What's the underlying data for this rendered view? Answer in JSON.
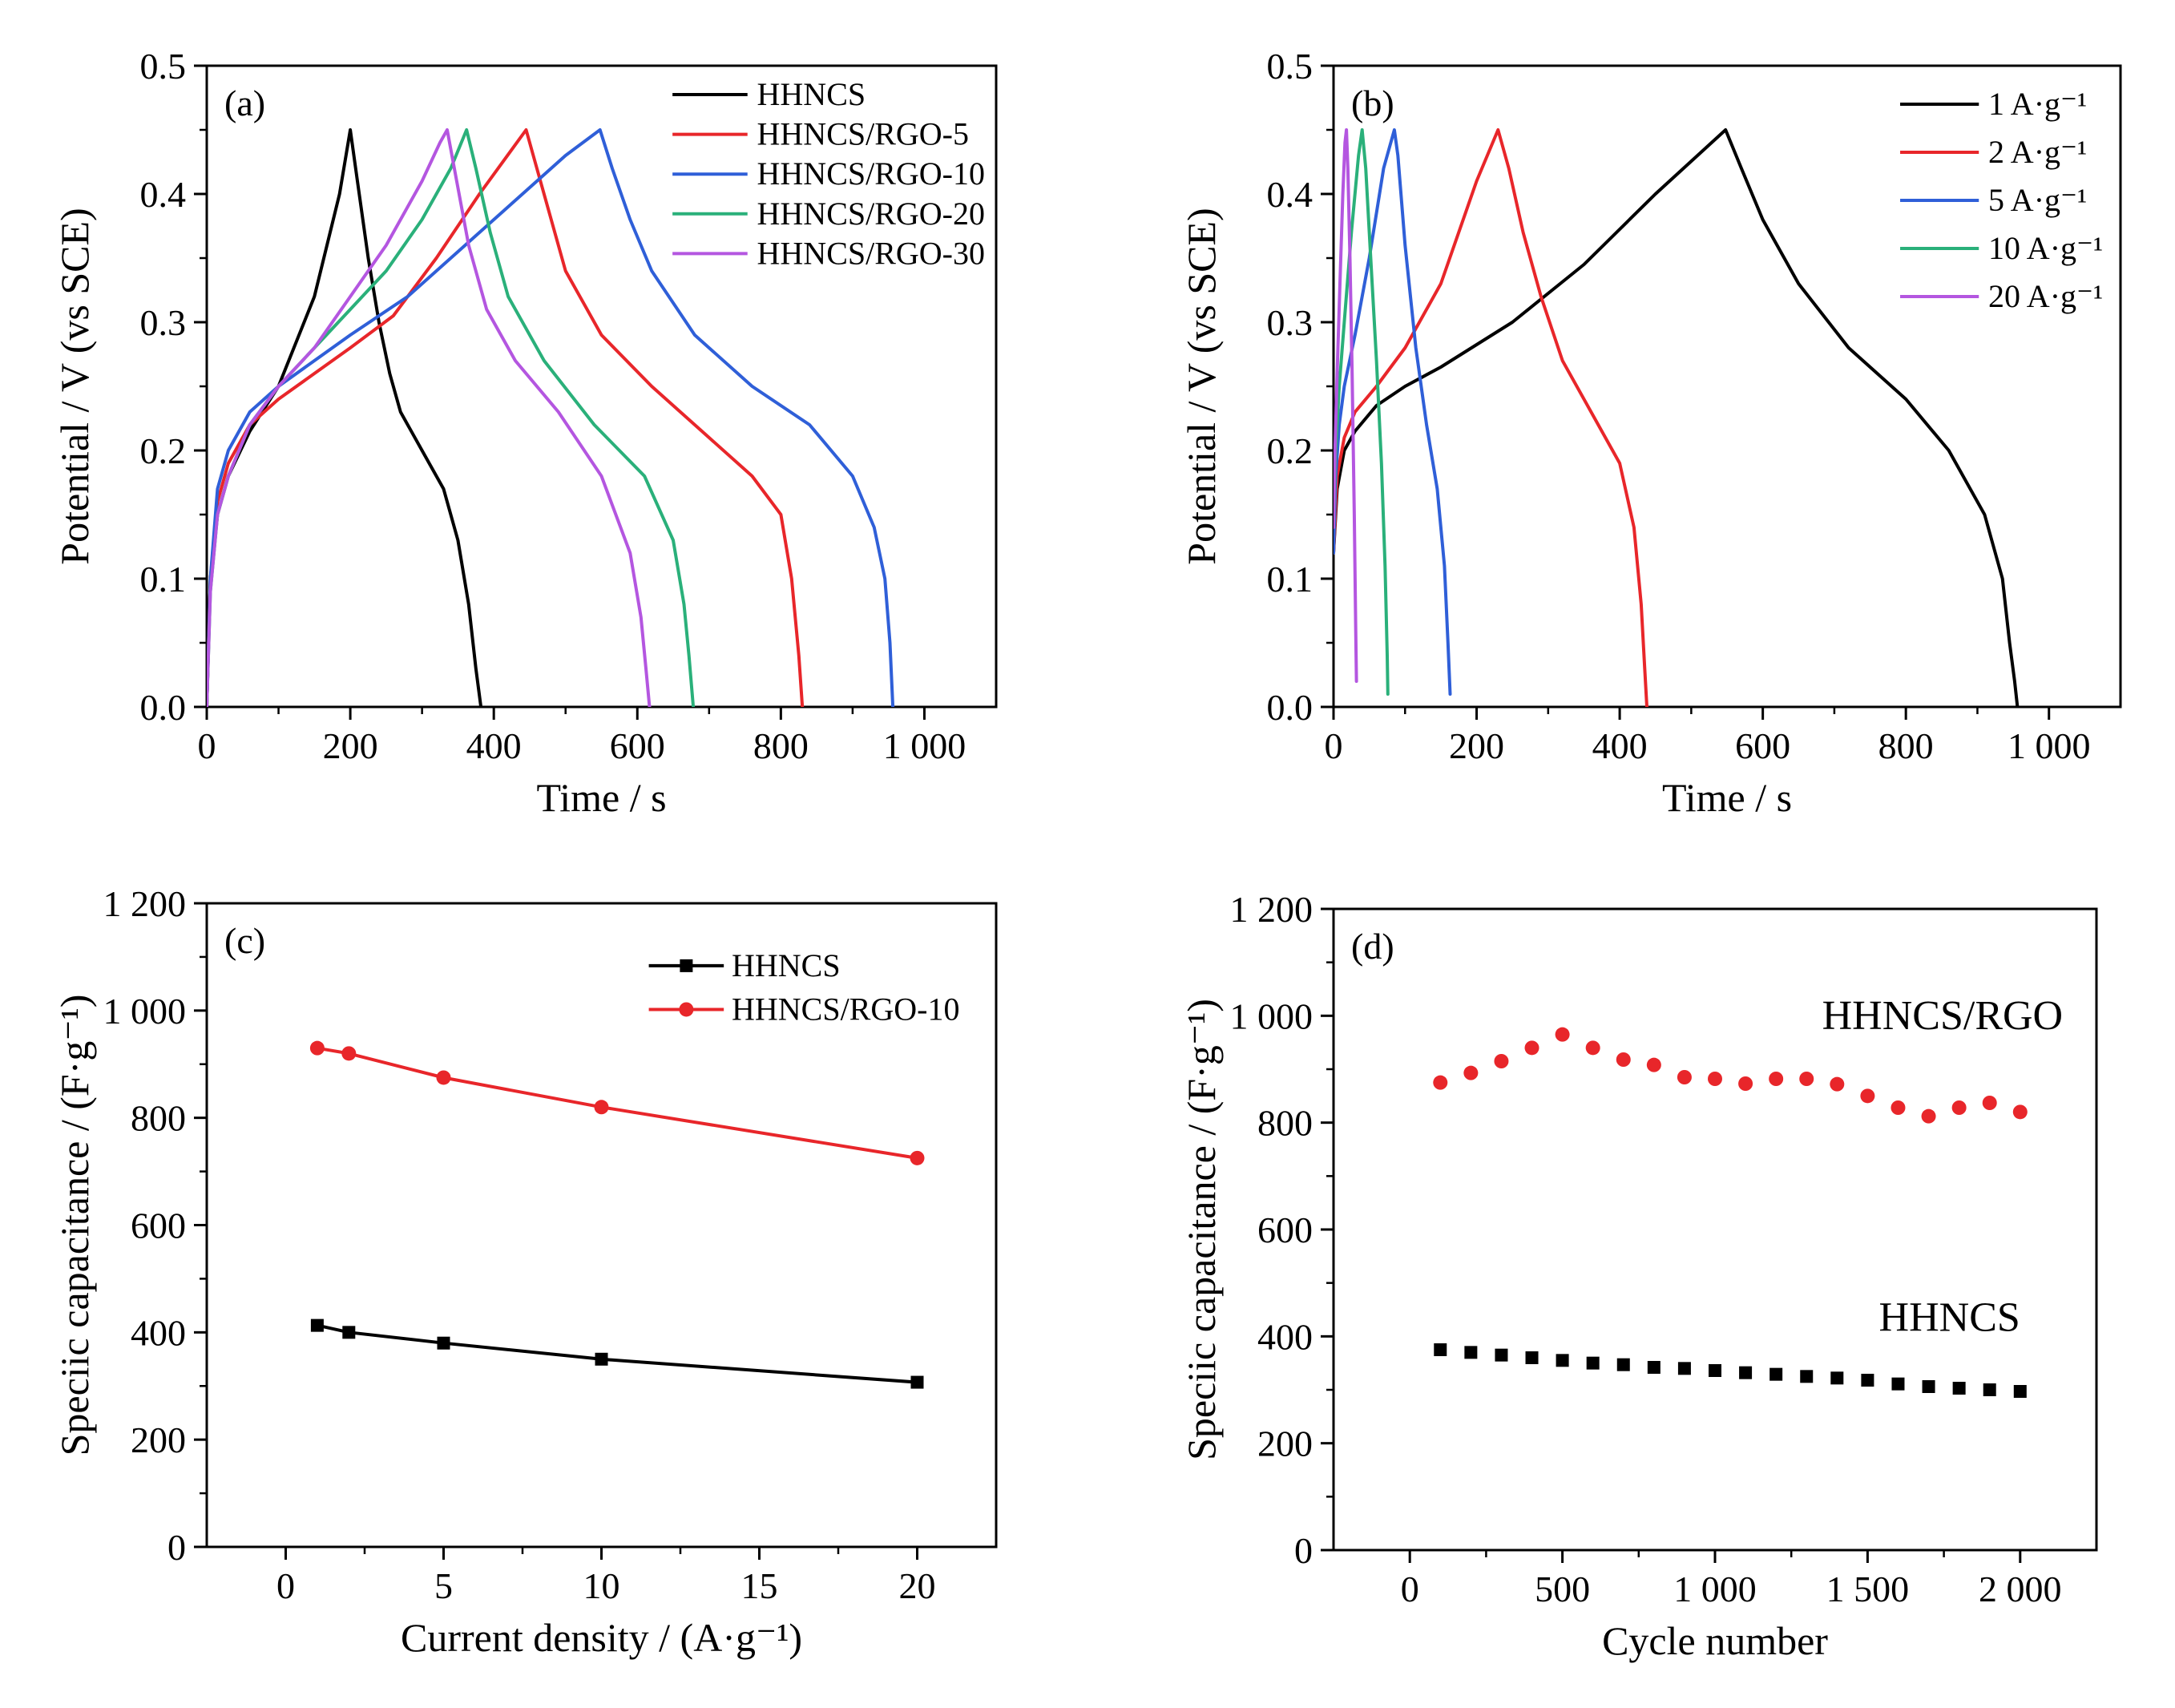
{
  "chart_data": [
    {
      "id": "a",
      "type": "line",
      "panel_label": "(a)",
      "xlabel": "Time / s",
      "ylabel": "Potential / V (vs SCE)",
      "xlim": [
        0,
        1100
      ],
      "ylim": [
        0,
        0.5
      ],
      "x_ticks": [
        0,
        200,
        400,
        600,
        800,
        1000
      ],
      "x_tick_labels": [
        "0",
        "200",
        "400",
        "600",
        "800",
        "1 000"
      ],
      "y_ticks": [
        0,
        0.1,
        0.2,
        0.3,
        0.4,
        0.5
      ],
      "y_tick_labels": [
        "0.0",
        "0.1",
        "0.2",
        "0.3",
        "0.4",
        "0.5"
      ],
      "legend": "top-right",
      "series": [
        {
          "name": "HHNCS",
          "color": "#000000",
          "x": [
            0,
            5,
            15,
            30,
            60,
            100,
            150,
            185,
            200,
            210,
            225,
            240,
            255,
            270,
            300,
            330,
            350,
            365,
            375,
            382
          ],
          "y": [
            0,
            0.1,
            0.15,
            0.18,
            0.215,
            0.25,
            0.32,
            0.4,
            0.45,
            0.41,
            0.35,
            0.3,
            0.26,
            0.23,
            0.2,
            0.17,
            0.13,
            0.08,
            0.03,
            0
          ]
        },
        {
          "name": "HHNCS/RGO-5",
          "color": "#e8262a",
          "x": [
            0,
            5,
            15,
            30,
            60,
            100,
            150,
            200,
            260,
            320,
            380,
            445,
            460,
            480,
            500,
            550,
            620,
            700,
            760,
            800,
            815,
            825,
            830
          ],
          "y": [
            0,
            0.1,
            0.16,
            0.19,
            0.22,
            0.24,
            0.26,
            0.28,
            0.305,
            0.35,
            0.4,
            0.45,
            0.42,
            0.38,
            0.34,
            0.29,
            0.25,
            0.21,
            0.18,
            0.15,
            0.1,
            0.04,
            0
          ]
        },
        {
          "name": "HHNCS/RGO-10",
          "color": "#2f5fd8",
          "x": [
            0,
            5,
            15,
            30,
            60,
            100,
            150,
            200,
            280,
            360,
            440,
            500,
            548,
            565,
            590,
            620,
            680,
            760,
            840,
            900,
            930,
            945,
            952,
            956
          ],
          "y": [
            0,
            0.1,
            0.17,
            0.2,
            0.23,
            0.25,
            0.27,
            0.29,
            0.32,
            0.36,
            0.4,
            0.43,
            0.45,
            0.42,
            0.38,
            0.34,
            0.29,
            0.25,
            0.22,
            0.18,
            0.14,
            0.1,
            0.05,
            0
          ]
        },
        {
          "name": "HHNCS/RGO-20",
          "color": "#2ab07a",
          "x": [
            0,
            5,
            15,
            30,
            60,
            100,
            150,
            200,
            250,
            300,
            340,
            362,
            375,
            395,
            420,
            470,
            540,
            610,
            650,
            665,
            672,
            678
          ],
          "y": [
            0,
            0.09,
            0.15,
            0.18,
            0.22,
            0.25,
            0.28,
            0.31,
            0.34,
            0.38,
            0.42,
            0.45,
            0.42,
            0.37,
            0.32,
            0.27,
            0.22,
            0.18,
            0.13,
            0.08,
            0.04,
            0
          ]
        },
        {
          "name": "HHNCS/RGO-30",
          "color": "#b456e0",
          "x": [
            0,
            5,
            15,
            30,
            60,
            100,
            150,
            200,
            250,
            300,
            325,
            335,
            345,
            365,
            390,
            430,
            490,
            550,
            590,
            605,
            612,
            617
          ],
          "y": [
            0,
            0.09,
            0.15,
            0.18,
            0.22,
            0.25,
            0.28,
            0.32,
            0.36,
            0.41,
            0.44,
            0.45,
            0.42,
            0.36,
            0.31,
            0.27,
            0.23,
            0.18,
            0.12,
            0.07,
            0.03,
            0
          ]
        }
      ]
    },
    {
      "id": "b",
      "type": "line",
      "panel_label": "(b)",
      "xlabel": "Time / s",
      "ylabel": "Potential / V (vs SCE)",
      "xlim": [
        0,
        1100
      ],
      "ylim": [
        0,
        0.5
      ],
      "x_ticks": [
        0,
        200,
        400,
        600,
        800,
        1000
      ],
      "x_tick_labels": [
        "0",
        "200",
        "400",
        "600",
        "800",
        "1 000"
      ],
      "y_ticks": [
        0,
        0.1,
        0.2,
        0.3,
        0.4,
        0.5
      ],
      "y_tick_labels": [
        "0.0",
        "0.1",
        "0.2",
        "0.3",
        "0.4",
        "0.5"
      ],
      "legend": "top-right",
      "series": [
        {
          "name": "1 A·g⁻¹",
          "color": "#000000",
          "x": [
            0,
            5,
            15,
            30,
            60,
            100,
            150,
            250,
            350,
            450,
            548,
            570,
            600,
            650,
            720,
            800,
            860,
            910,
            935,
            945,
            952,
            956
          ],
          "y": [
            0.12,
            0.17,
            0.2,
            0.215,
            0.235,
            0.25,
            0.265,
            0.3,
            0.345,
            0.4,
            0.45,
            0.42,
            0.38,
            0.33,
            0.28,
            0.24,
            0.2,
            0.15,
            0.1,
            0.05,
            0.02,
            0
          ]
        },
        {
          "name": "2 A·g⁻¹",
          "color": "#e8262a",
          "x": [
            0,
            5,
            15,
            30,
            60,
            100,
            150,
            200,
            230,
            245,
            265,
            290,
            320,
            360,
            400,
            420,
            430,
            435,
            438
          ],
          "y": [
            0.12,
            0.18,
            0.21,
            0.23,
            0.25,
            0.28,
            0.33,
            0.41,
            0.45,
            0.42,
            0.37,
            0.32,
            0.27,
            0.23,
            0.19,
            0.14,
            0.08,
            0.03,
            0
          ]
        },
        {
          "name": "5 A·g⁻¹",
          "color": "#2f5fd8",
          "x": [
            0,
            3,
            8,
            15,
            30,
            50,
            70,
            85,
            90,
            100,
            115,
            130,
            145,
            155,
            160,
            163
          ],
          "y": [
            0.12,
            0.18,
            0.22,
            0.25,
            0.29,
            0.35,
            0.42,
            0.45,
            0.43,
            0.36,
            0.28,
            0.22,
            0.17,
            0.11,
            0.05,
            0.01
          ]
        },
        {
          "name": "10 A·g⁻¹",
          "color": "#2ab07a",
          "x": [
            0,
            3,
            8,
            15,
            25,
            35,
            40,
            45,
            52,
            60,
            67,
            72,
            75,
            76
          ],
          "y": [
            0.14,
            0.2,
            0.25,
            0.3,
            0.37,
            0.43,
            0.45,
            0.42,
            0.35,
            0.27,
            0.19,
            0.11,
            0.04,
            0.01
          ]
        },
        {
          "name": "20 A·g⁻¹",
          "color": "#b456e0",
          "x": [
            0,
            2,
            5,
            9,
            13,
            16,
            18,
            20,
            23,
            26,
            29,
            31,
            32
          ],
          "y": [
            0.14,
            0.2,
            0.26,
            0.33,
            0.4,
            0.44,
            0.45,
            0.42,
            0.35,
            0.26,
            0.15,
            0.06,
            0.02
          ]
        }
      ]
    },
    {
      "id": "c",
      "type": "line",
      "panel_label": "(c)",
      "xlabel": "Current density / (A·g⁻¹)",
      "ylabel": "Speciic capacitance / (F·g⁻¹)",
      "xlim": [
        -2.5,
        22.5
      ],
      "ylim": [
        0,
        1200
      ],
      "x_ticks": [
        0,
        5,
        10,
        15,
        20
      ],
      "x_tick_labels": [
        "0",
        "5",
        "10",
        "15",
        "20"
      ],
      "y_ticks": [
        0,
        200,
        400,
        600,
        800,
        1000,
        1200
      ],
      "y_tick_labels": [
        "0",
        "200",
        "400",
        "600",
        "800",
        "1 000",
        "1 200"
      ],
      "legend": "top-right",
      "series": [
        {
          "name": "HHNCS",
          "color": "#000000",
          "marker": "square",
          "x": [
            1,
            2,
            5,
            10,
            20
          ],
          "y": [
            413,
            400,
            380,
            350,
            307
          ]
        },
        {
          "name": "HHNCS/RGO-10",
          "color": "#e8262a",
          "marker": "circle",
          "x": [
            1,
            2,
            5,
            10,
            20
          ],
          "y": [
            930,
            920,
            875,
            820,
            725
          ]
        }
      ]
    },
    {
      "id": "d",
      "type": "scatter",
      "panel_label": "(d)",
      "xlabel": "Cycle number",
      "ylabel": "Speciic capacitance / (F·g⁻¹)",
      "xlim": [
        -250,
        2250
      ],
      "ylim": [
        0,
        1200
      ],
      "x_ticks": [
        0,
        500,
        1000,
        1500,
        2000
      ],
      "x_tick_labels": [
        "0",
        "500",
        "1 000",
        "1 500",
        "2 000"
      ],
      "y_ticks": [
        0,
        200,
        400,
        600,
        800,
        1000,
        1200
      ],
      "y_tick_labels": [
        "0",
        "200",
        "400",
        "600",
        "800",
        "1 000",
        "1 200"
      ],
      "annotations": [
        "HHNCS/RGO",
        "HHNCS"
      ],
      "series": [
        {
          "name": "HHNCS/RGO",
          "color": "#e8262a",
          "marker": "circle",
          "x": [
            100,
            200,
            300,
            400,
            500,
            600,
            700,
            800,
            900,
            1000,
            1100,
            1200,
            1300,
            1400,
            1500,
            1600,
            1700,
            1800,
            1900,
            2000
          ],
          "y": [
            875,
            893,
            915,
            940,
            965,
            940,
            918,
            908,
            885,
            882,
            873,
            882,
            882,
            872,
            850,
            828,
            812,
            828,
            837,
            820
          ]
        },
        {
          "name": "HHNCS",
          "color": "#000000",
          "marker": "square",
          "x": [
            100,
            200,
            300,
            400,
            500,
            600,
            700,
            800,
            900,
            1000,
            1100,
            1200,
            1300,
            1400,
            1500,
            1600,
            1700,
            1800,
            1900,
            2000
          ],
          "y": [
            375,
            370,
            365,
            360,
            355,
            350,
            347,
            342,
            340,
            336,
            332,
            329,
            325,
            322,
            318,
            311,
            306,
            303,
            300,
            297
          ]
        }
      ]
    }
  ]
}
